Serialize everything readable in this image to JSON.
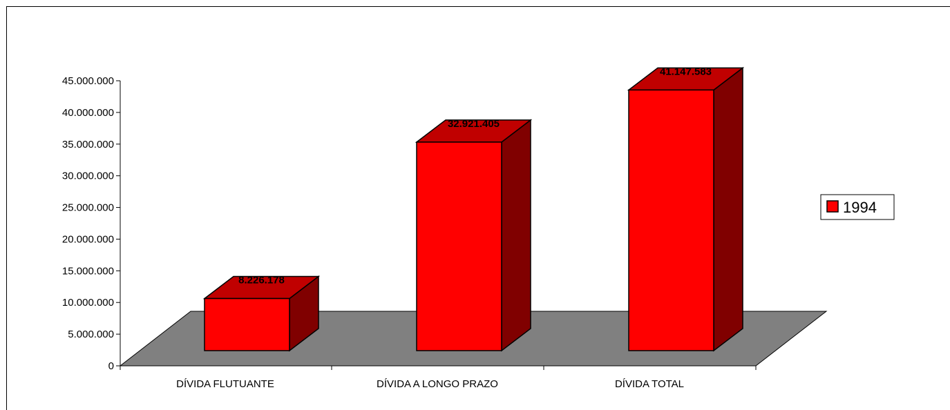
{
  "chart_data": {
    "type": "bar",
    "style": "3d-column",
    "categories": [
      "DÍVIDA FLUTUANTE",
      "DÍVIDA A LONGO PRAZO",
      "DÍVIDA TOTAL"
    ],
    "series": [
      {
        "name": "1994",
        "values": [
          8226178,
          32921405,
          41147583
        ],
        "labels": [
          "8.226.178",
          "32.921.405",
          "41.147.583"
        ],
        "color": "#ff0000"
      }
    ],
    "yticks": [
      "0",
      "5.000.000",
      "10.000.000",
      "15.000.000",
      "20.000.000",
      "25.000.000",
      "30.000.000",
      "35.000.000",
      "40.000.000",
      "45.000.000"
    ],
    "ylim": [
      0,
      45000000
    ],
    "title": "",
    "xlabel": "",
    "ylabel": "",
    "legend_position": "right",
    "floor_color": "#808080"
  }
}
